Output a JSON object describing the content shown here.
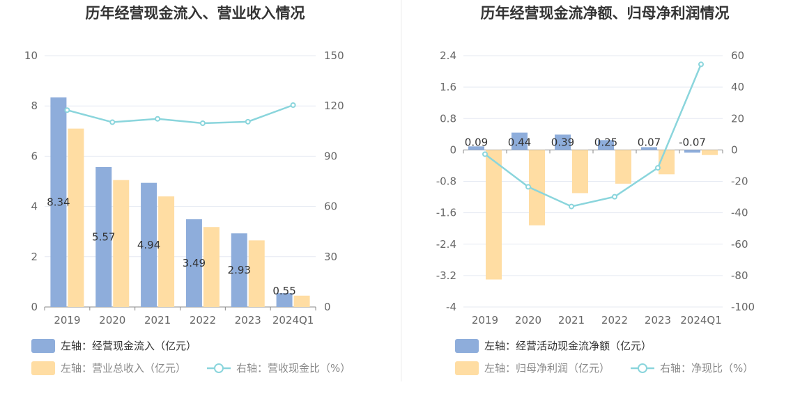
{
  "colors": {
    "bar_blue": "#8EADDB",
    "bar_orange": "#FFDDA3",
    "line_teal": "#8AD5DC",
    "grid": "#E5E9F2",
    "axis": "#888888",
    "divider": "#EEEEEE"
  },
  "chart_data": [
    {
      "type": "bar",
      "title": "历年经营现金流入、营业收入情况",
      "categories": [
        "2019",
        "2020",
        "2021",
        "2022",
        "2023",
        "2024Q1"
      ],
      "left_axis": {
        "ticks": [
          "0",
          "2",
          "4",
          "6",
          "8",
          "10"
        ],
        "min": 0,
        "max": 10
      },
      "right_axis": {
        "ticks": [
          "0",
          "30",
          "60",
          "90",
          "120",
          "150"
        ],
        "min": 0,
        "max": 150
      },
      "series": [
        {
          "name": "左轴：经营现金流入（亿元）",
          "axis": "left",
          "kind": "bar",
          "color": "#8EADDB",
          "values": [
            8.34,
            5.57,
            4.94,
            3.49,
            2.93,
            0.55
          ],
          "labels": [
            "8.34",
            "5.57",
            "4.94",
            "3.49",
            "2.93",
            "0.55"
          ]
        },
        {
          "name": "左轴：营业总收入（亿元）",
          "axis": "left",
          "kind": "bar",
          "color": "#FFDDA3",
          "values": [
            7.1,
            5.05,
            4.4,
            3.18,
            2.65,
            0.45
          ]
        },
        {
          "name": "右轴：营收现金比（%）",
          "axis": "right",
          "kind": "line",
          "color": "#8AD5DC",
          "values": [
            117.5,
            110.3,
            112.3,
            109.7,
            110.6,
            120.5
          ]
        }
      ]
    },
    {
      "type": "bar",
      "title": "历年经营现金流净额、归母净利润情况",
      "categories": [
        "2019",
        "2020",
        "2021",
        "2022",
        "2023",
        "2024Q1"
      ],
      "left_axis": {
        "ticks": [
          "2.4",
          "1.6",
          "0.8",
          "0",
          "-0.8",
          "-1.6",
          "-2.4",
          "-3.2",
          "-4"
        ],
        "min": -4,
        "max": 2.4
      },
      "right_axis": {
        "ticks": [
          "60",
          "40",
          "20",
          "0",
          "-20",
          "-40",
          "-60",
          "-80",
          "-100"
        ],
        "min": -100,
        "max": 60
      },
      "series": [
        {
          "name": "左轴：经营活动现金流净额（亿元）",
          "axis": "left",
          "kind": "bar",
          "color": "#8EADDB",
          "values": [
            0.09,
            0.44,
            0.39,
            0.25,
            0.07,
            -0.07
          ],
          "labels": [
            "0.09",
            "0.44",
            "0.39",
            "0.25",
            "0.07",
            "-0.07"
          ]
        },
        {
          "name": "左轴：归母净利润（亿元）",
          "axis": "left",
          "kind": "bar",
          "color": "#FFDDA3",
          "values": [
            -3.3,
            -1.92,
            -1.1,
            -0.86,
            -0.62,
            -0.13
          ]
        },
        {
          "name": "右轴：净现比（%）",
          "axis": "right",
          "kind": "line",
          "color": "#8AD5DC",
          "values": [
            -2.7,
            -23.5,
            -36,
            -29.8,
            -11.4,
            54.5
          ]
        }
      ]
    }
  ]
}
